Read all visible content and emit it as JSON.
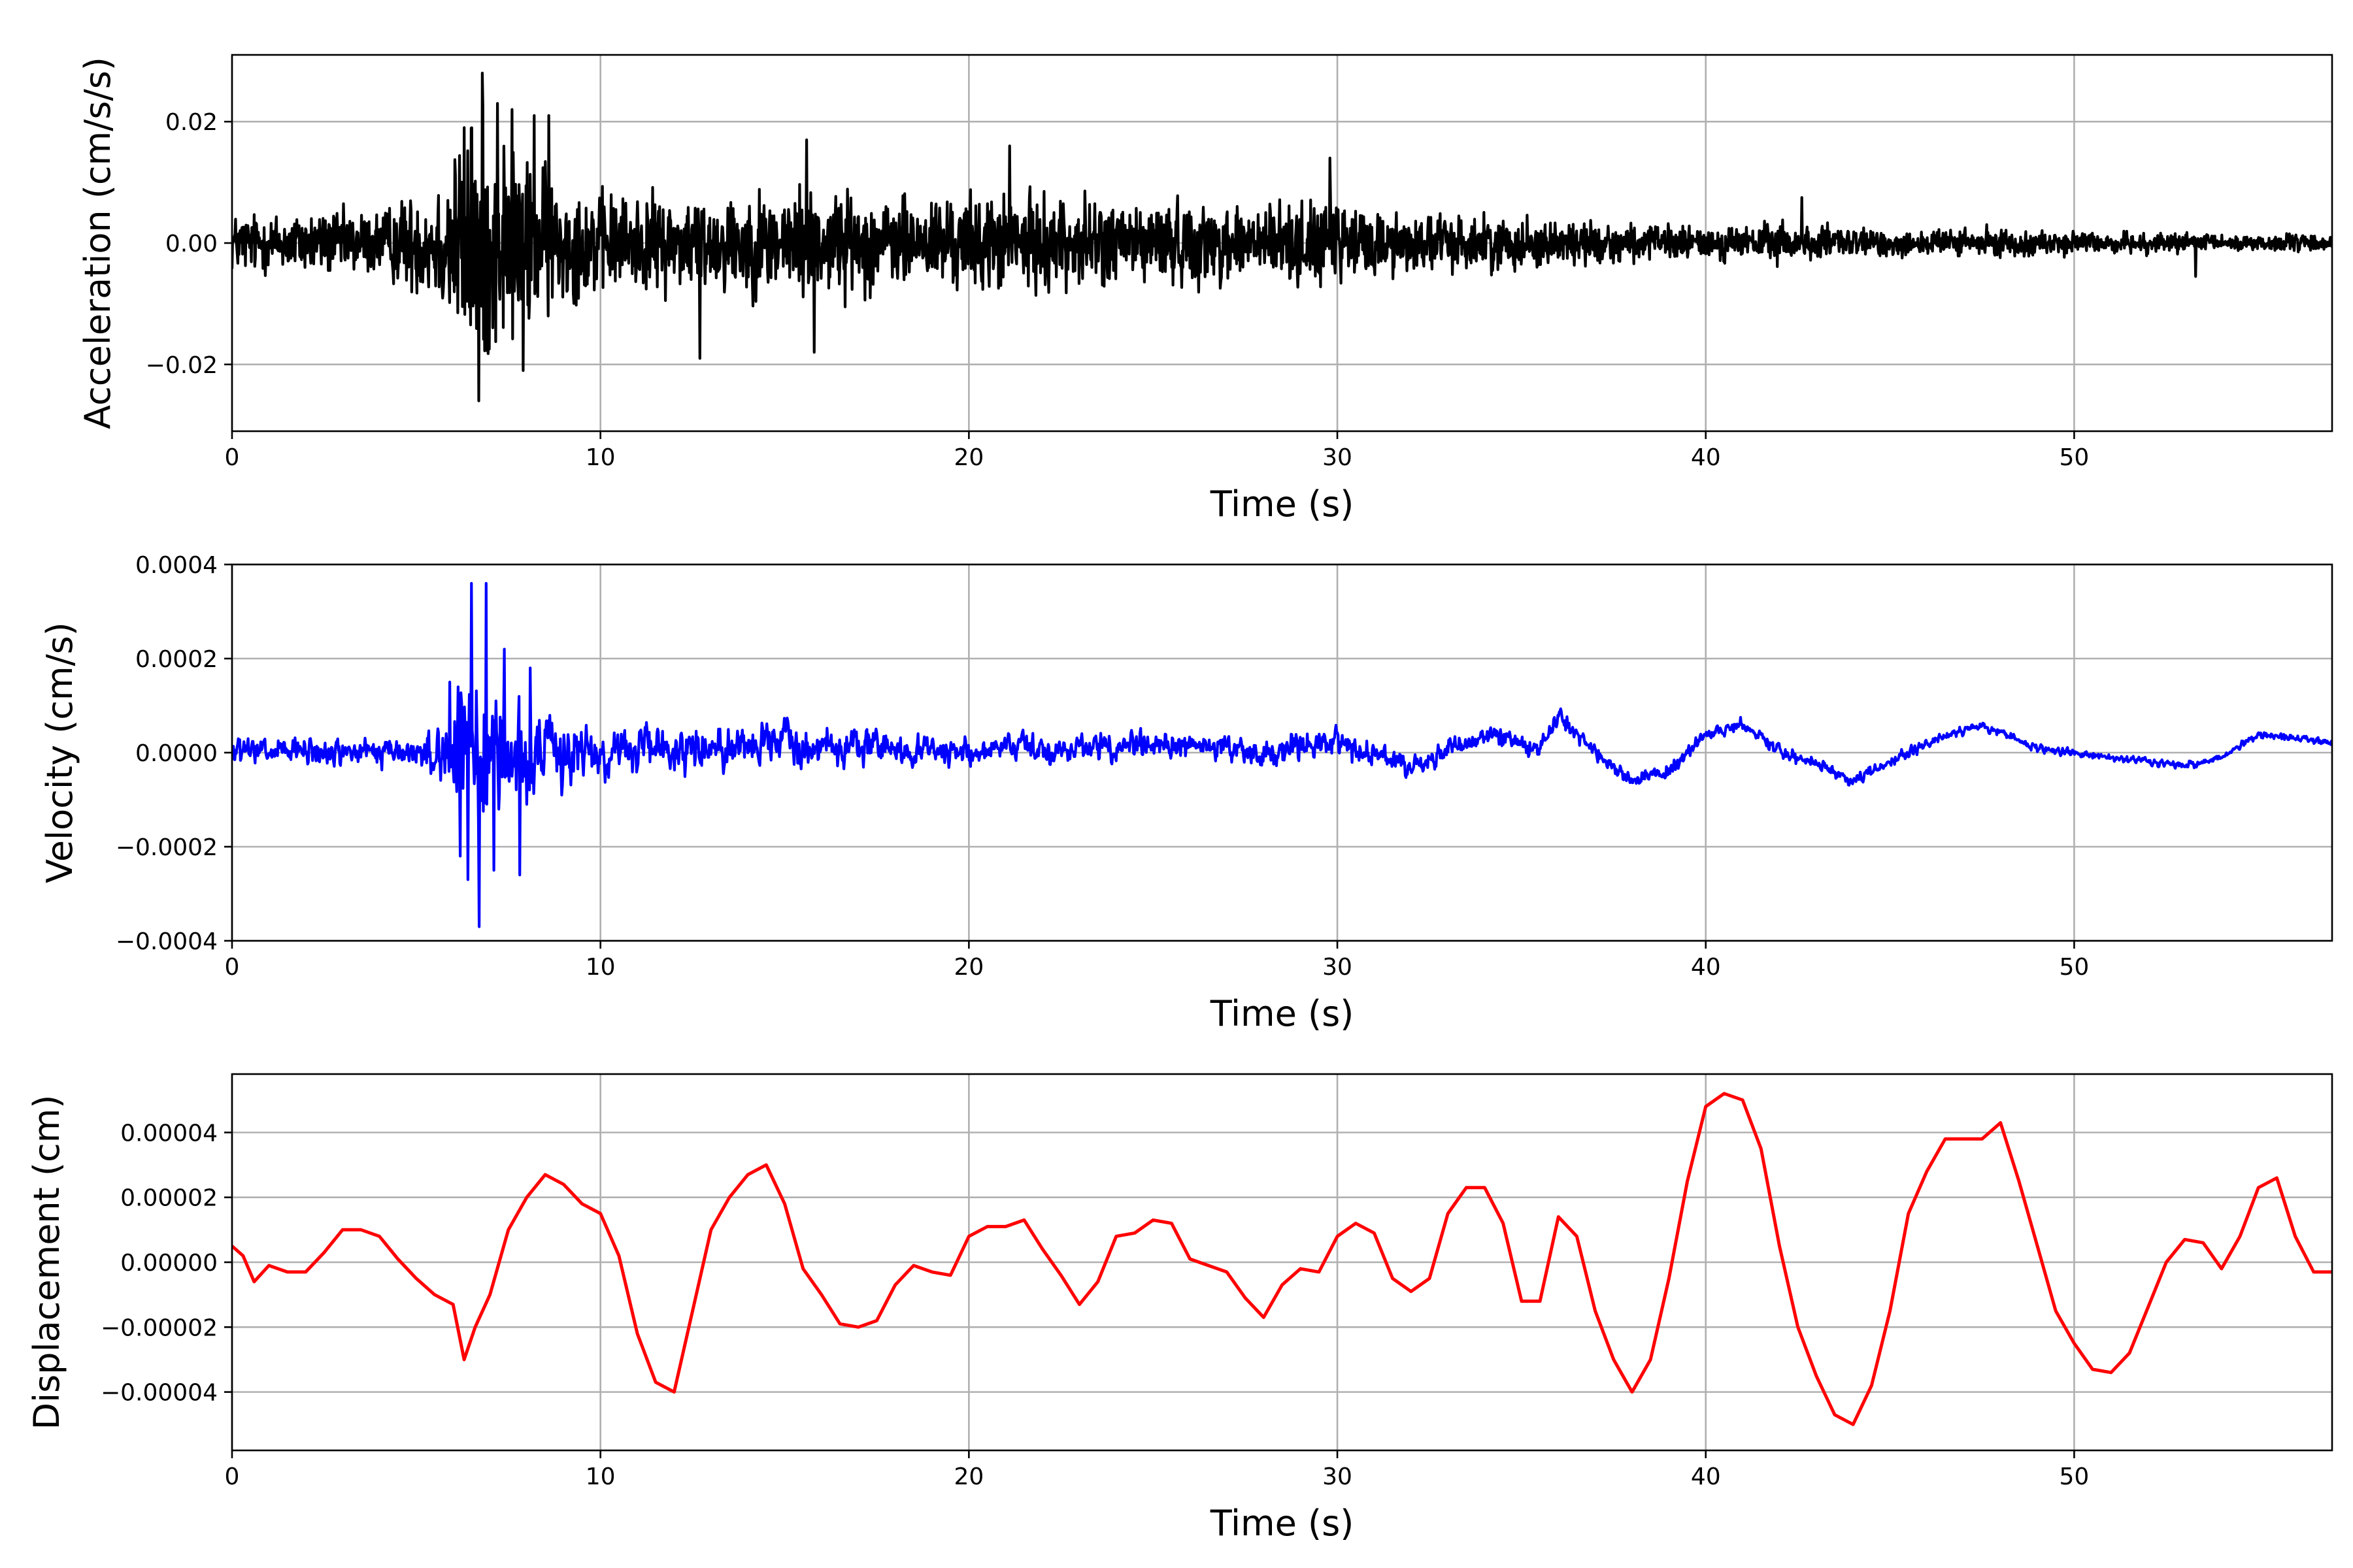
{
  "chart_data": [
    {
      "type": "line",
      "xlabel": "Time (s)",
      "ylabel": "Acceleration (cm/s/s)",
      "xlim": [
        0,
        57
      ],
      "ylim": [
        -0.031,
        0.031
      ],
      "xticks": [
        0,
        10,
        20,
        30,
        40,
        50
      ],
      "xtick_labels": [
        "0",
        "10",
        "20",
        "30",
        "40",
        "50"
      ],
      "yticks": [
        -0.02,
        0.0,
        0.02
      ],
      "ytick_labels": [
        "−0.02",
        "0.00",
        "0.02"
      ],
      "grid": true,
      "series": [
        {
          "color": "#000000",
          "envelope": {
            "t": [
              0,
              4,
              5.5,
              6.5,
              7.5,
              9,
              10.5,
              13,
              15.5,
              18,
              21,
              25,
              28,
              30,
              32,
              35,
              38,
              40,
              42,
              44,
              48,
              52,
              57
            ],
            "amp": [
              0.004,
              0.0045,
              0.008,
              0.018,
              0.014,
              0.008,
              0.0065,
              0.0065,
              0.0075,
              0.006,
              0.0065,
              0.0055,
              0.0055,
              0.0055,
              0.004,
              0.0035,
              0.0025,
              0.0022,
              0.0028,
              0.002,
              0.0018,
              0.0013,
              0.0011
            ]
          },
          "peaks": {
            "t": [
              6.5,
              6.7,
              6.8,
              7.2,
              7.6,
              8.2,
              8.6,
              7.9,
              12.7,
              15.6,
              15.8,
              21.1,
              29.8,
              42.6,
              53.3
            ],
            "y": [
              0.019,
              -0.026,
              0.028,
              0.023,
              0.022,
              0.021,
              0.021,
              -0.021,
              -0.019,
              0.017,
              -0.018,
              0.016,
              0.014,
              0.0075,
              -0.0055
            ]
          }
        }
      ]
    },
    {
      "type": "line",
      "xlabel": "Time (s)",
      "ylabel": "Velocity (cm/s)",
      "xlim": [
        0,
        57
      ],
      "ylim": [
        -0.0004,
        0.0004
      ],
      "xticks": [
        0,
        10,
        20,
        30,
        40,
        50
      ],
      "xtick_labels": [
        "0",
        "10",
        "20",
        "30",
        "40",
        "50"
      ],
      "yticks": [
        -0.0004,
        -0.0002,
        0.0,
        0.0002,
        0.0004
      ],
      "ytick_labels": [
        "−0.0004",
        "−0.0002",
        "0.0000",
        "0.0002",
        "0.0004"
      ],
      "grid": true,
      "series": [
        {
          "color": "#0000ff",
          "baseline": {
            "t": [
              0,
              5,
              10,
              15,
              20,
              25,
              28,
              30,
              32,
              34,
              35.5,
              36,
              37,
              38,
              39,
              40,
              41,
              42,
              43,
              44,
              46,
              47.5,
              49,
              51,
              53,
              54,
              55,
              57
            ],
            "y": [
              0.0,
              0.0,
              0.0,
              2e-05,
              0.0,
              2e-05,
              0.0,
              2e-05,
              -3e-05,
              4e-05,
              1e-05,
              8e-05,
              0.0,
              -6e-05,
              -4e-05,
              4e-05,
              6e-05,
              0.0,
              -2e-05,
              -6e-05,
              2e-05,
              6e-05,
              1e-05,
              -1e-05,
              -3e-05,
              -1e-05,
              4e-05,
              2e-05
            ]
          },
          "envelope": {
            "t": [
              0,
              5,
              5.8,
              6.5,
              7.5,
              8.5,
              10,
              12,
              15,
              20,
              25,
              30,
              32,
              35,
              38,
              42,
              48,
              57
            ],
            "amp": [
              4e-05,
              4e-05,
              0.0001,
              0.0002,
              0.00016,
              0.0001,
              7e-05,
              6e-05,
              6e-05,
              4e-05,
              4e-05,
              4e-05,
              3e-05,
              3e-05,
              2e-05,
              2e-05,
              1.2e-05,
              1e-05
            ]
          },
          "peaks": {
            "t": [
              5.9,
              6.2,
              6.4,
              6.5,
              6.7,
              6.9,
              7.1,
              7.4,
              7.8,
              8.1
            ],
            "y": [
              0.00015,
              -0.00022,
              -0.00027,
              0.00036,
              -0.00037,
              0.00036,
              -0.00025,
              0.00022,
              -0.00026,
              0.00018
            ]
          }
        }
      ]
    },
    {
      "type": "line",
      "xlabel": "Time (s)",
      "ylabel": "Displacement (cm)",
      "xlim": [
        0,
        57
      ],
      "ylim": [
        -5.8e-05,
        5.8e-05
      ],
      "xticks": [
        0,
        10,
        20,
        30,
        40,
        50
      ],
      "xtick_labels": [
        "0",
        "10",
        "20",
        "30",
        "40",
        "50"
      ],
      "yticks": [
        -4e-05,
        -2e-05,
        0.0,
        2e-05,
        4e-05
      ],
      "ytick_labels": [
        "−0.00004",
        "−0.00002",
        "0.00000",
        "0.00002",
        "0.00004"
      ],
      "grid": true,
      "series": [
        {
          "color": "#ff0000",
          "x": [
            0,
            0.3,
            0.6,
            1.0,
            1.5,
            2.0,
            2.5,
            3.0,
            3.5,
            4.0,
            4.5,
            5.0,
            5.5,
            6.0,
            6.3,
            6.6,
            7.0,
            7.5,
            8.0,
            8.5,
            9.0,
            9.5,
            10.0,
            10.5,
            11.0,
            11.5,
            12.0,
            12.5,
            13.0,
            13.5,
            14.0,
            14.5,
            15.0,
            15.5,
            16.0,
            16.5,
            17.0,
            17.5,
            18.0,
            18.5,
            19.0,
            19.5,
            20.0,
            20.5,
            21.0,
            21.5,
            22.0,
            22.5,
            23.0,
            23.5,
            24.0,
            24.5,
            25.0,
            25.5,
            26.0,
            26.5,
            27.0,
            27.5,
            28.0,
            28.5,
            29.0,
            29.5,
            30.0,
            30.5,
            31.0,
            31.5,
            32.0,
            32.5,
            33.0,
            33.5,
            34.0,
            34.5,
            35.0,
            35.5,
            36.0,
            36.5,
            37.0,
            37.5,
            38.0,
            38.5,
            39.0,
            39.5,
            40.0,
            40.5,
            41.0,
            41.5,
            42.0,
            42.5,
            43.0,
            43.5,
            44.0,
            44.5,
            45.0,
            45.5,
            46.0,
            46.5,
            47.0,
            47.5,
            48.0,
            48.5,
            49.0,
            49.5,
            50.0,
            50.5,
            51.0,
            51.5,
            52.0,
            52.5,
            53.0,
            53.5,
            54.0,
            54.5,
            55.0,
            55.5,
            56.0,
            56.5,
            57.0
          ],
          "y": [
            5e-06,
            2e-06,
            -6e-06,
            -1e-06,
            -3e-06,
            -3e-06,
            3e-06,
            1e-05,
            1e-05,
            8e-06,
            1e-06,
            -5e-06,
            -1e-05,
            -1.3e-05,
            -3e-05,
            -2e-05,
            -1e-05,
            1e-05,
            2e-05,
            2.7e-05,
            2.4e-05,
            1.8e-05,
            1.5e-05,
            2e-06,
            -2.2e-05,
            -3.7e-05,
            -4e-05,
            -1.5e-05,
            1e-05,
            2e-05,
            2.7e-05,
            3e-05,
            1.8e-05,
            -2e-06,
            -1e-05,
            -1.9e-05,
            -2e-05,
            -1.8e-05,
            -7e-06,
            -1e-06,
            -3e-06,
            -4e-06,
            8e-06,
            1.1e-05,
            1.1e-05,
            1.3e-05,
            4e-06,
            -4e-06,
            -1.3e-05,
            -6e-06,
            8e-06,
            9e-06,
            1.3e-05,
            1.2e-05,
            1e-06,
            -1e-06,
            -3e-06,
            -1.1e-05,
            -1.7e-05,
            -7e-06,
            -2e-06,
            -3e-06,
            8e-06,
            1.2e-05,
            9e-06,
            -5e-06,
            -9e-06,
            -5e-06,
            1.5e-05,
            2.3e-05,
            2.3e-05,
            1.2e-05,
            -1.2e-05,
            -1.2e-05,
            1.4e-05,
            8e-06,
            -1.5e-05,
            -3e-05,
            -4e-05,
            -3e-05,
            -5e-06,
            2.5e-05,
            4.8e-05,
            5.2e-05,
            5e-05,
            3.5e-05,
            5e-06,
            -2e-05,
            -3.5e-05,
            -4.7e-05,
            -5e-05,
            -3.8e-05,
            -1.5e-05,
            1.5e-05,
            2.8e-05,
            3.8e-05,
            3.8e-05,
            3.8e-05,
            4.3e-05,
            2.5e-05,
            5e-06,
            -1.5e-05,
            -2.5e-05,
            -3.3e-05,
            -3.4e-05,
            -2.8e-05,
            -1.4e-05,
            0.0,
            7e-06,
            6e-06,
            -2e-06,
            8e-06,
            2.3e-05,
            2.6e-05,
            8e-06,
            -3e-06,
            -3e-06
          ]
        }
      ]
    }
  ]
}
